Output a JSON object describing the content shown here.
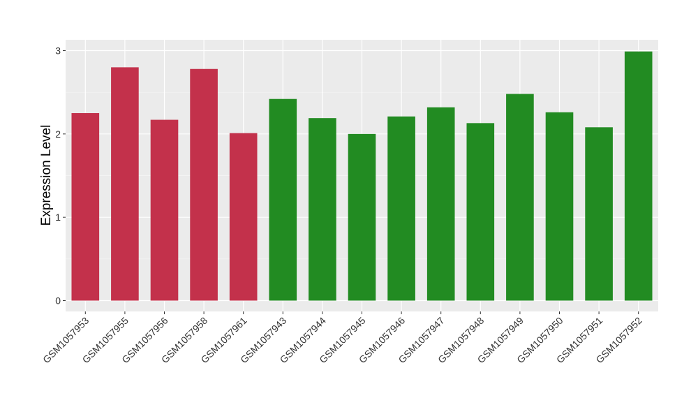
{
  "chart_data": {
    "type": "bar",
    "title": "",
    "xlabel": "",
    "ylabel": "Expression Level",
    "ylim": [
      -0.13,
      3.13
    ],
    "yticks": [
      0,
      1,
      2,
      3
    ],
    "grid": true,
    "panel_background": "#ebebeb",
    "categories": [
      "GSM1057953",
      "GSM1057955",
      "GSM1057956",
      "GSM1057958",
      "GSM1057961",
      "GSM1057943",
      "GSM1057944",
      "GSM1057945",
      "GSM1057946",
      "GSM1057947",
      "GSM1057948",
      "GSM1057949",
      "GSM1057950",
      "GSM1057951",
      "GSM1057952"
    ],
    "values": [
      2.25,
      2.8,
      2.17,
      2.78,
      2.01,
      2.42,
      2.19,
      2.0,
      2.21,
      2.32,
      2.13,
      2.48,
      2.26,
      2.08,
      2.99
    ],
    "bar_colors": [
      "#c3314b",
      "#c3314b",
      "#c3314b",
      "#c3314b",
      "#c3314b",
      "#228b22",
      "#228b22",
      "#228b22",
      "#228b22",
      "#228b22",
      "#228b22",
      "#228b22",
      "#228b22",
      "#228b22",
      "#228b22"
    ]
  }
}
